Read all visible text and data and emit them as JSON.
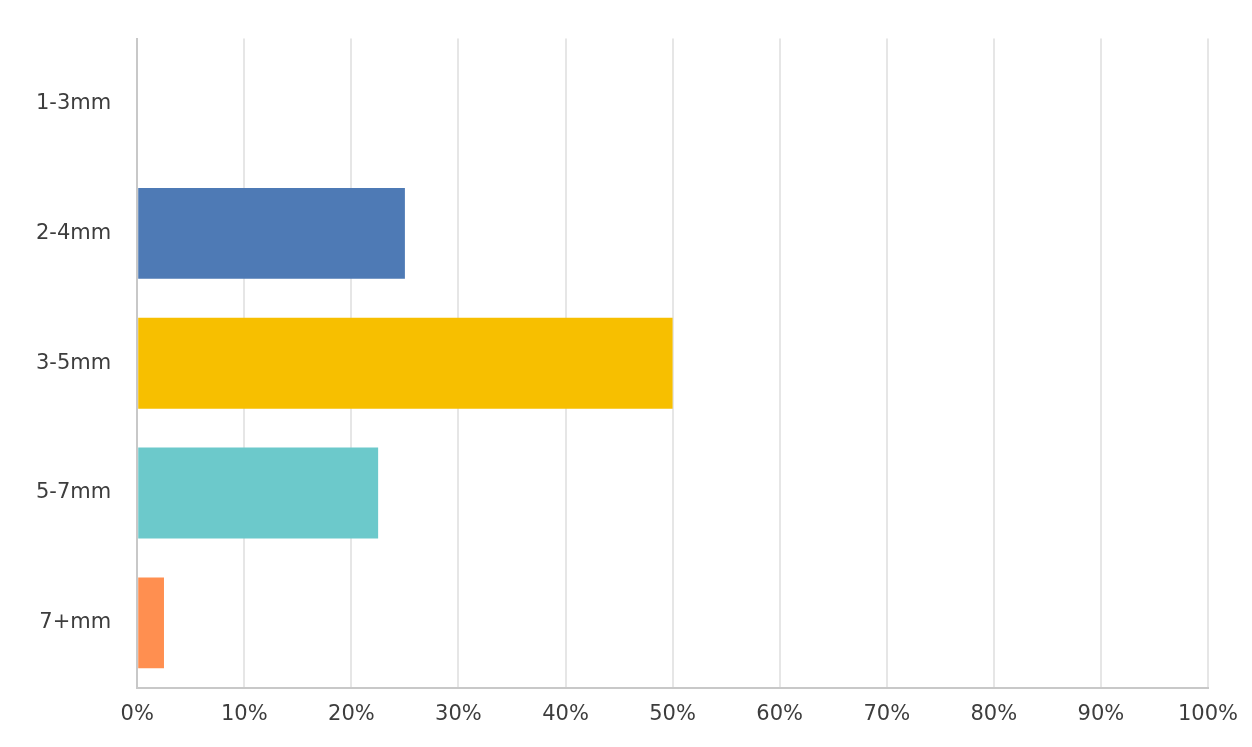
{
  "chart_data": {
    "type": "bar",
    "orientation": "horizontal",
    "categories": [
      "1-3mm",
      "2-4mm",
      "3-5mm",
      "5-7mm",
      "7+mm"
    ],
    "values": [
      0,
      25,
      50,
      22.5,
      2.5
    ],
    "colors": [
      "#4e7ab5",
      "#4e7ab5",
      "#f7bf00",
      "#6cc9cb",
      "#ff8f50"
    ],
    "xlim": [
      0,
      100
    ],
    "xticks": [
      {
        "value": 0,
        "label": "0%"
      },
      {
        "value": 10,
        "label": "10%"
      },
      {
        "value": 20,
        "label": "20%"
      },
      {
        "value": 30,
        "label": "30%"
      },
      {
        "value": 40,
        "label": "40%"
      },
      {
        "value": 50,
        "label": "50%"
      },
      {
        "value": 60,
        "label": "60%"
      },
      {
        "value": 70,
        "label": "70%"
      },
      {
        "value": 80,
        "label": "80%"
      },
      {
        "value": 90,
        "label": "90%"
      },
      {
        "value": 100,
        "label": "100%"
      }
    ],
    "grid": "x",
    "legend": false
  }
}
